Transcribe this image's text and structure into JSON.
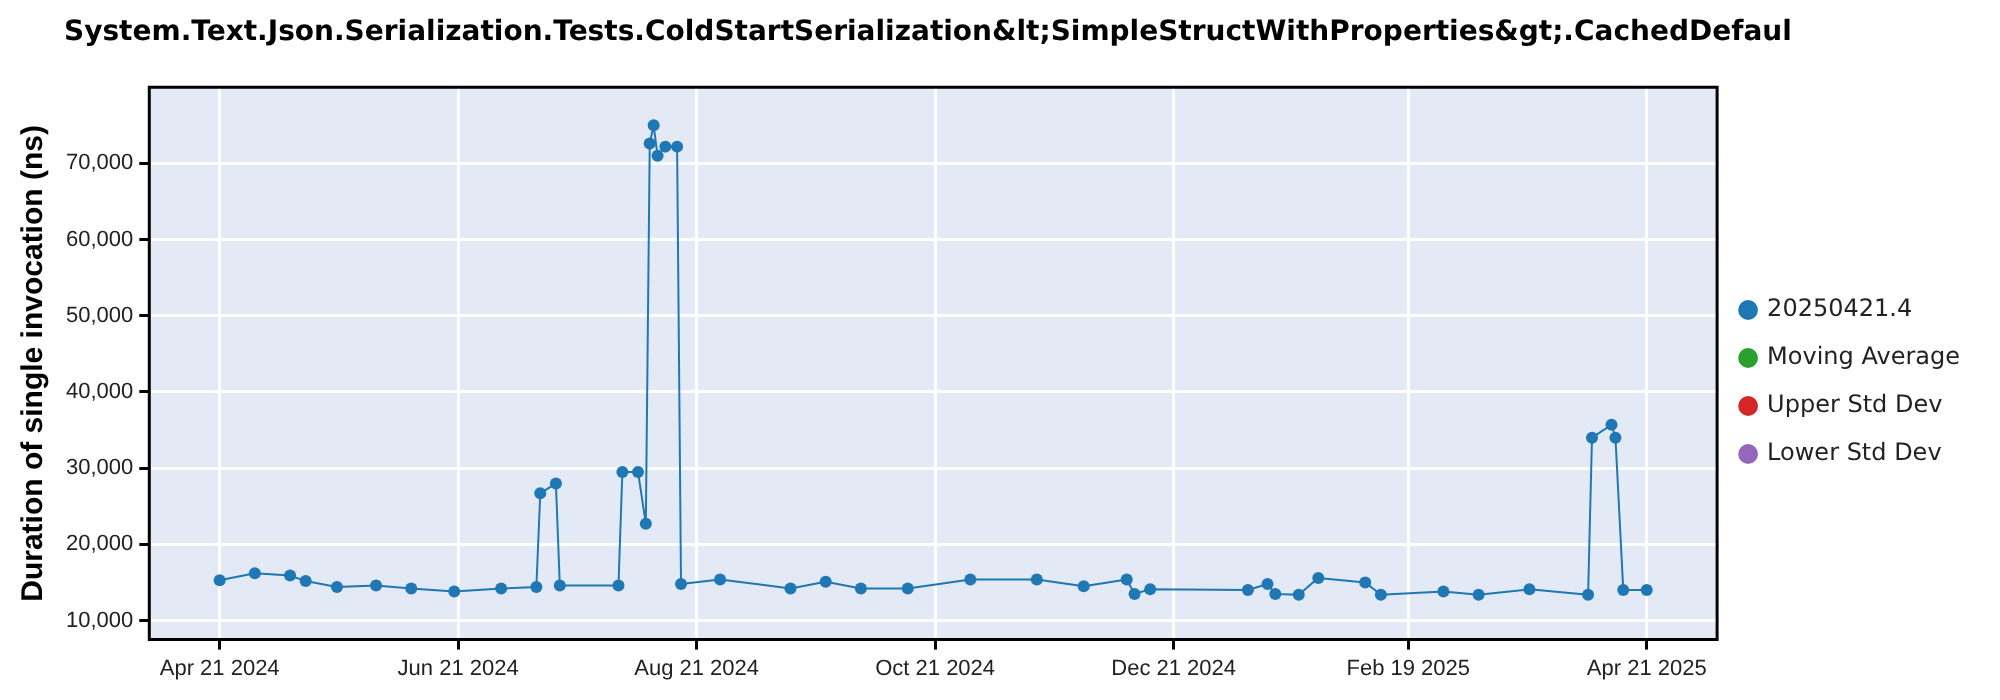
{
  "chart_data": {
    "type": "line",
    "title": "System.Text.Json.Serialization.Tests.ColdStartSerialization&lt;SimpleStructWithProperties&gt;.CachedDefaul",
    "ylabel": "Duration of single invocation (ns)",
    "x": [
      "2024-04-21",
      "2024-04-30",
      "2024-05-09",
      "2024-05-13",
      "2024-05-21",
      "2024-05-31",
      "2024-06-09",
      "2024-06-20",
      "2024-07-02",
      "2024-07-11",
      "2024-07-12",
      "2024-07-16",
      "2024-07-17",
      "2024-08-01",
      "2024-08-02",
      "2024-08-06",
      "2024-08-08",
      "2024-08-09",
      "2024-08-10",
      "2024-08-11",
      "2024-08-13",
      "2024-08-16",
      "2024-08-17",
      "2024-08-27",
      "2024-09-14",
      "2024-09-23",
      "2024-10-02",
      "2024-10-14",
      "2024-10-30",
      "2024-11-16",
      "2024-11-28",
      "2024-12-09",
      "2024-12-11",
      "2024-12-15",
      "2025-01-09",
      "2025-01-14",
      "2025-01-16",
      "2025-01-22",
      "2025-01-27",
      "2025-02-08",
      "2025-02-12",
      "2025-02-28",
      "2025-03-09",
      "2025-03-22",
      "2025-04-06",
      "2025-04-07",
      "2025-04-12",
      "2025-04-13",
      "2025-04-15",
      "2025-04-21"
    ],
    "series": [
      {
        "name": "20250421.4",
        "color": "#1f77b4",
        "values": [
          15300,
          16200,
          15900,
          15200,
          14400,
          14600,
          14200,
          13800,
          14200,
          14400,
          26700,
          28000,
          14600,
          14600,
          29500,
          29500,
          22700,
          72600,
          75000,
          71000,
          72200,
          72200,
          14800,
          15400,
          14200,
          15100,
          14200,
          14200,
          15400,
          15400,
          14500,
          15400,
          13500,
          14100,
          14000,
          14800,
          13500,
          13400,
          15600,
          15000,
          13400,
          13800,
          13400,
          14100,
          13400,
          34000,
          35700,
          34000,
          14000,
          14000
        ]
      },
      {
        "name": "Moving Average",
        "color": "#2ca02c",
        "values": [
          null,
          null,
          null,
          null,
          null,
          null,
          null,
          null,
          null,
          null,
          null,
          null,
          null,
          null,
          null,
          null,
          null,
          null,
          null,
          null,
          null,
          null,
          null,
          null,
          null,
          null,
          null,
          null,
          null,
          null,
          null,
          null,
          null,
          null,
          null,
          null,
          null,
          null,
          null,
          null,
          null,
          null,
          null,
          null,
          null,
          null,
          null,
          null,
          null,
          null
        ]
      },
      {
        "name": "Upper Std Dev",
        "color": "#d62728",
        "values": [
          null,
          null,
          null,
          null,
          null,
          null,
          null,
          null,
          null,
          null,
          null,
          null,
          null,
          null,
          null,
          null,
          null,
          null,
          null,
          null,
          null,
          null,
          null,
          null,
          null,
          null,
          null,
          null,
          null,
          null,
          null,
          null,
          null,
          null,
          null,
          null,
          null,
          null,
          null,
          null,
          null,
          null,
          null,
          null,
          null,
          null,
          null,
          null,
          null,
          null
        ]
      },
      {
        "name": "Lower Std Dev",
        "color": "#9467bd",
        "values": [
          null,
          null,
          null,
          null,
          null,
          null,
          null,
          null,
          null,
          null,
          null,
          null,
          null,
          null,
          null,
          null,
          null,
          null,
          null,
          null,
          null,
          null,
          null,
          null,
          null,
          null,
          null,
          null,
          null,
          null,
          null,
          null,
          null,
          null,
          null,
          null,
          null,
          null,
          null,
          null,
          null,
          null,
          null,
          null,
          null,
          null,
          null,
          null,
          null,
          null
        ]
      }
    ],
    "xlim": [
      "2024-04-03",
      "2025-05-09"
    ],
    "xticks": [
      {
        "value": "2024-04-21",
        "label": "Apr 21 2024"
      },
      {
        "value": "2024-06-21",
        "label": "Jun 21 2024"
      },
      {
        "value": "2024-08-21",
        "label": "Aug 21 2024"
      },
      {
        "value": "2024-10-21",
        "label": "Oct 21 2024"
      },
      {
        "value": "2024-12-21",
        "label": "Dec 21 2024"
      },
      {
        "value": "2025-02-19",
        "label": "Feb 19 2025"
      },
      {
        "value": "2025-04-21",
        "label": "Apr 21 2025"
      }
    ],
    "ylim": [
      7500,
      80000
    ],
    "yticks": [
      {
        "value": 10000,
        "label": "10,000"
      },
      {
        "value": 20000,
        "label": "20,000"
      },
      {
        "value": 30000,
        "label": "30,000"
      },
      {
        "value": 40000,
        "label": "40,000"
      },
      {
        "value": 50000,
        "label": "50,000"
      },
      {
        "value": 60000,
        "label": "60,000"
      },
      {
        "value": 70000,
        "label": "70,000"
      }
    ],
    "grid": true,
    "legend": "right",
    "marker": "circle",
    "line_style": "solid"
  }
}
